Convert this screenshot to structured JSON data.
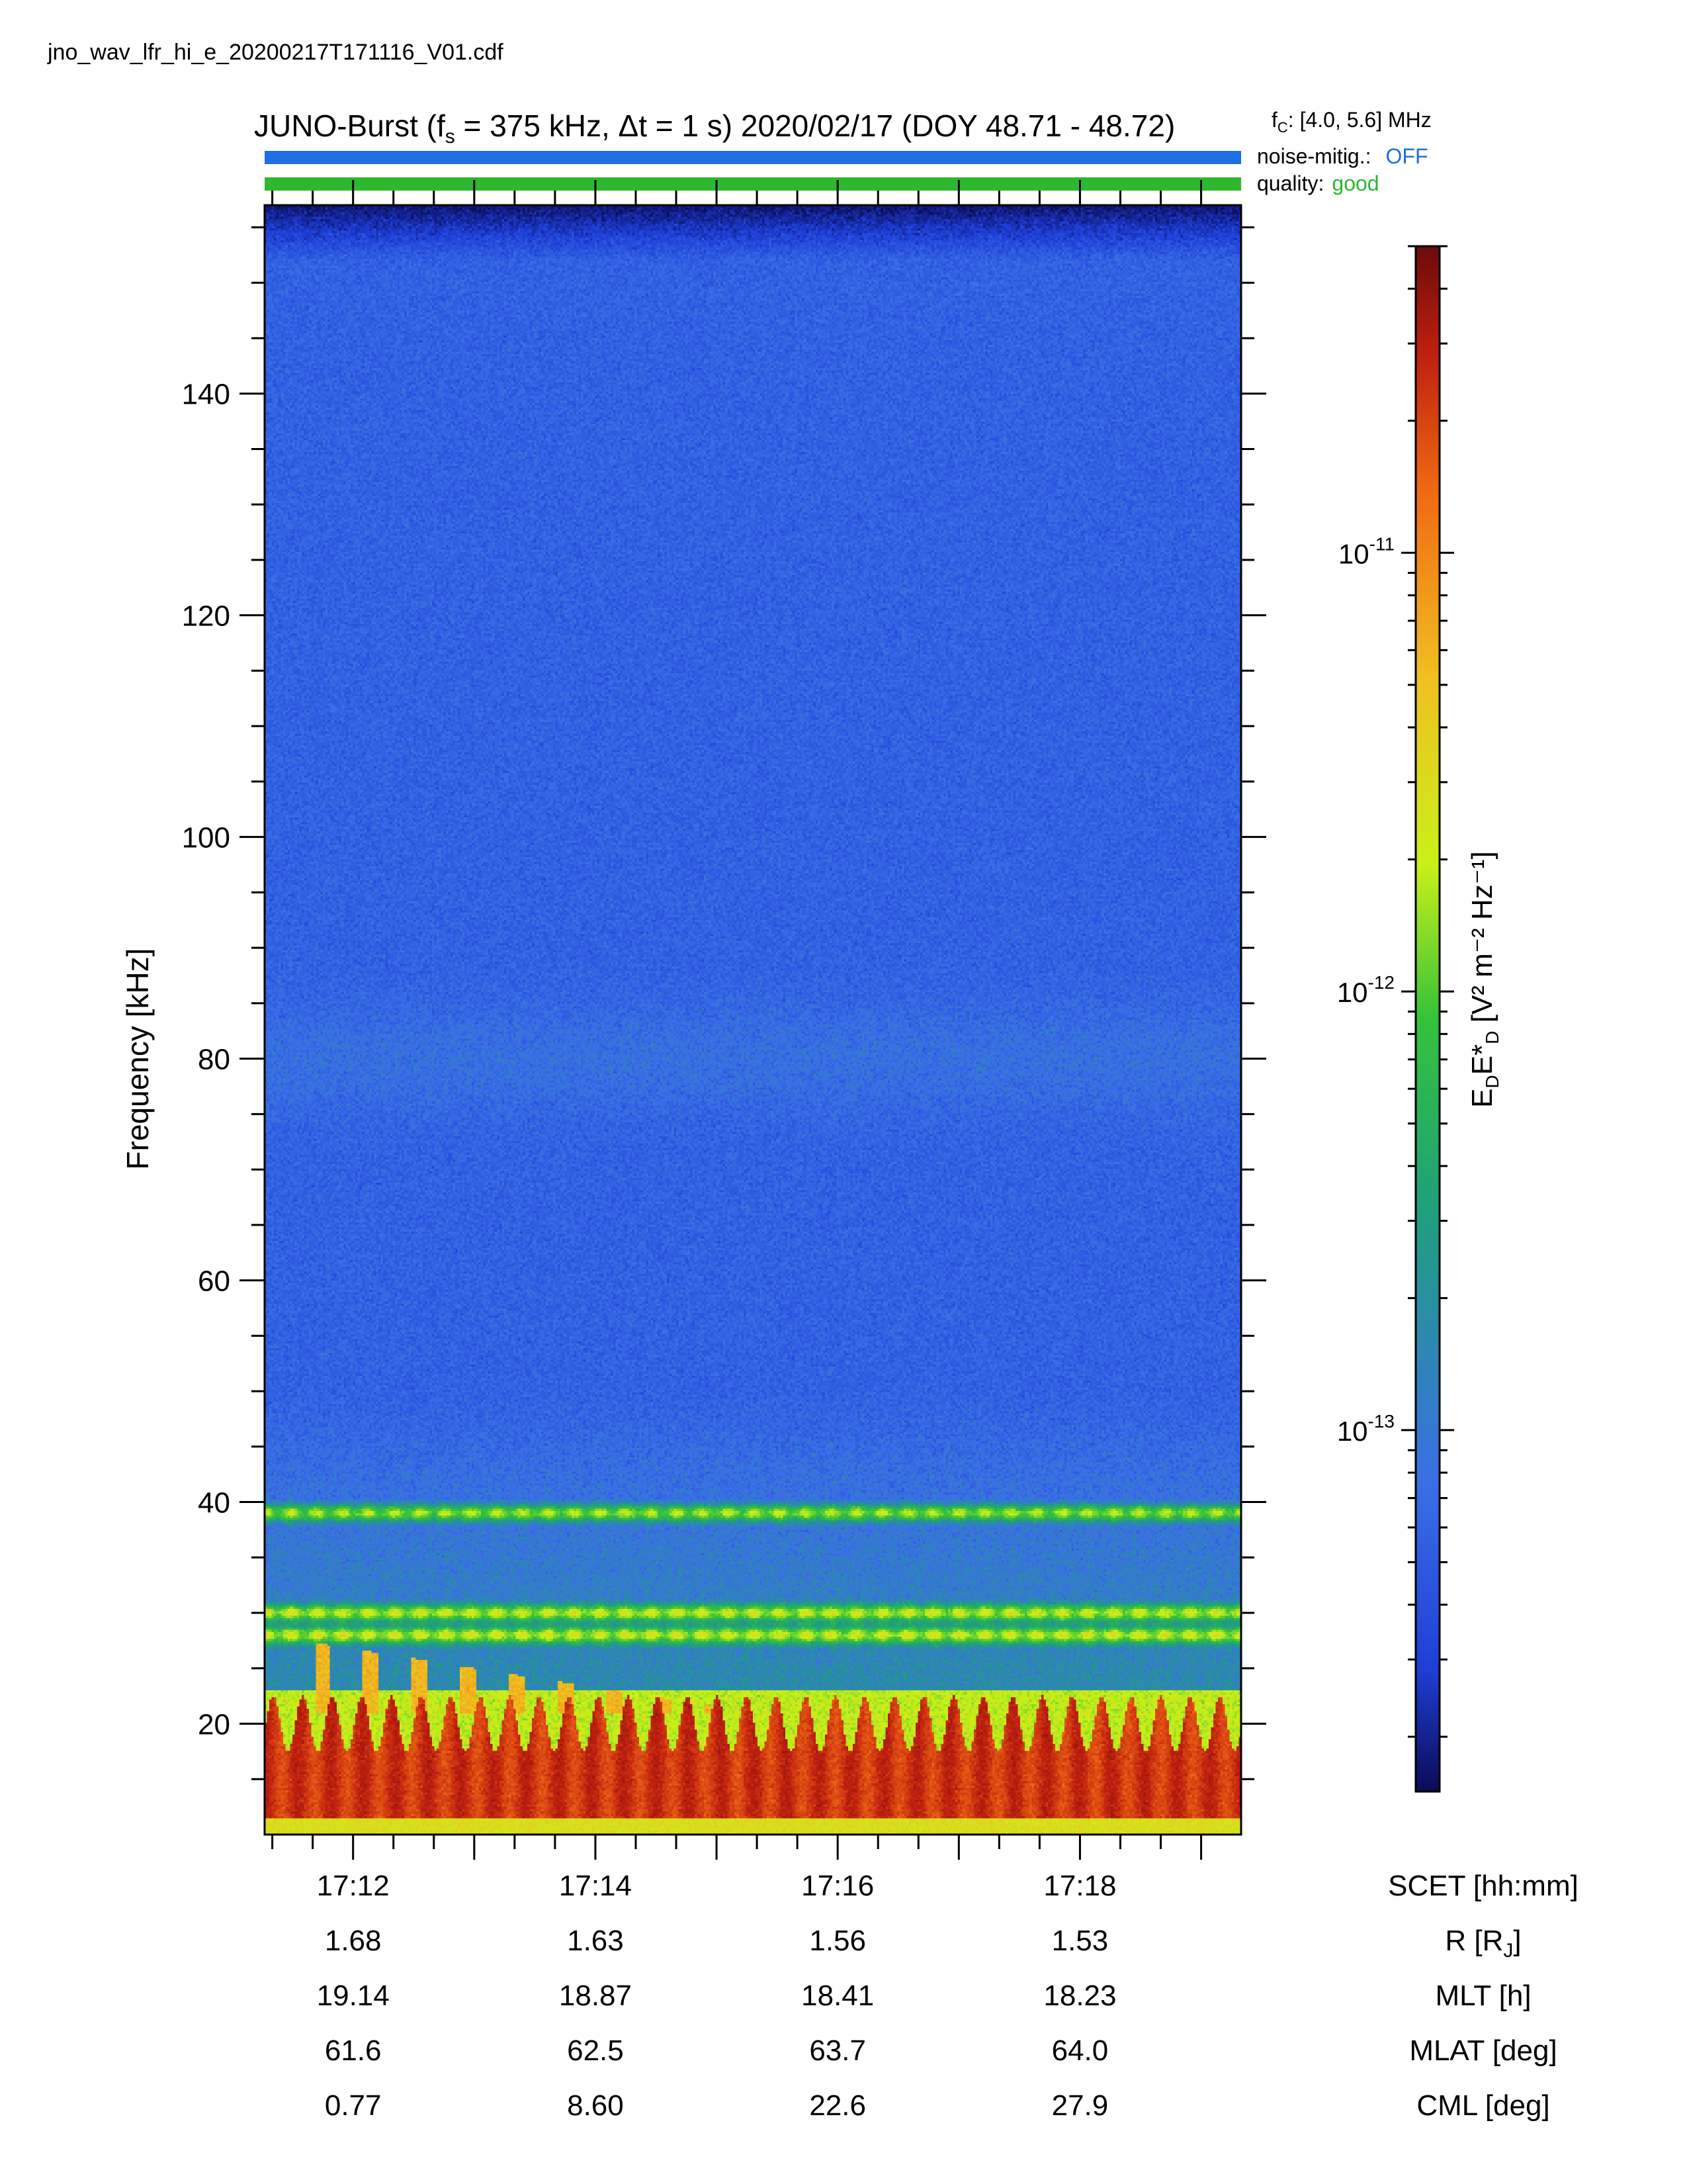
{
  "filename": "jno_wav_lfr_hi_e_20200217T171116_V01.cdf",
  "title": {
    "prefix": "JUNO-Burst (f",
    "sub": "s",
    "suffix": " = 375 kHz, Δt = 1 s)  2020/02/17 (DOY 48.71 - 48.72)"
  },
  "fc": {
    "main": "f",
    "sub": "C",
    "rest": ": [4.0, 5.6] MHz"
  },
  "noise_mitigation": {
    "label": "noise-mitig.:",
    "value": "OFF",
    "color": "#1e6fe0"
  },
  "quality": {
    "label": "quality:",
    "value": "good",
    "color": "#2db82d"
  },
  "bar_colors": {
    "top": "#1e6fe0",
    "bottom": "#2db82d"
  },
  "chart_data": {
    "type": "heatmap",
    "ylabel": "Frequency [kHz]",
    "ylim": [
      10,
      157
    ],
    "y_ticks": [
      "20",
      "40",
      "60",
      "80",
      "100",
      "120",
      "140"
    ],
    "y_tick_values": [
      20,
      40,
      60,
      80,
      100,
      120,
      140
    ],
    "x_ticks": [
      "17:12",
      "17:14",
      "17:16",
      "17:18"
    ],
    "xlim_minutes": [
      11.27,
      19.33
    ],
    "x_tick_minutes": [
      12,
      14,
      16,
      18
    ],
    "colorbar": {
      "label_main": "E",
      "label_sub1": "D",
      "label_mid": "E*",
      "label_sub2": "D",
      "label_units": " [V² m⁻² Hz⁻¹]",
      "scale": "log",
      "range": [
        1.5e-14,
        5e-11
      ],
      "tick_values": [
        1e-13,
        1e-12,
        1e-11
      ],
      "ticks": [
        {
          "base": "10",
          "exp": "-13"
        },
        {
          "base": "10",
          "exp": "-12"
        },
        {
          "base": "10",
          "exp": "-11"
        }
      ],
      "colormap": [
        "#0b0b55",
        "#1e3fd8",
        "#3a6fe6",
        "#1fa07a",
        "#35c23a",
        "#c9f018",
        "#f0c020",
        "#f06a14",
        "#c0200f",
        "#6b0b0b"
      ]
    },
    "features": [
      {
        "name": "low-frequency band",
        "freq_khz": [
          11,
          22
        ]
      },
      {
        "name": "band",
        "freq_khz": 39
      },
      {
        "name": "band",
        "freq_khz": 30
      },
      {
        "name": "band",
        "freq_khz": 28
      }
    ]
  },
  "ephemeris": {
    "rows": [
      {
        "label": "SCET [hh:mm]",
        "values": [
          "17:12",
          "17:14",
          "17:16",
          "17:18"
        ]
      },
      {
        "label": "R [R",
        "label_sub": "J",
        "label_end": "]",
        "values": [
          "1.68",
          "1.63",
          "1.56",
          "1.53"
        ]
      },
      {
        "label": "MLT [h]",
        "values": [
          "19.14",
          "18.87",
          "18.41",
          "18.23"
        ]
      },
      {
        "label": "MLAT [deg]",
        "values": [
          "61.6",
          "62.5",
          "63.7",
          "64.0"
        ]
      },
      {
        "label": "CML [deg]",
        "values": [
          "0.77",
          "8.60",
          "22.6",
          "27.9"
        ]
      }
    ]
  }
}
